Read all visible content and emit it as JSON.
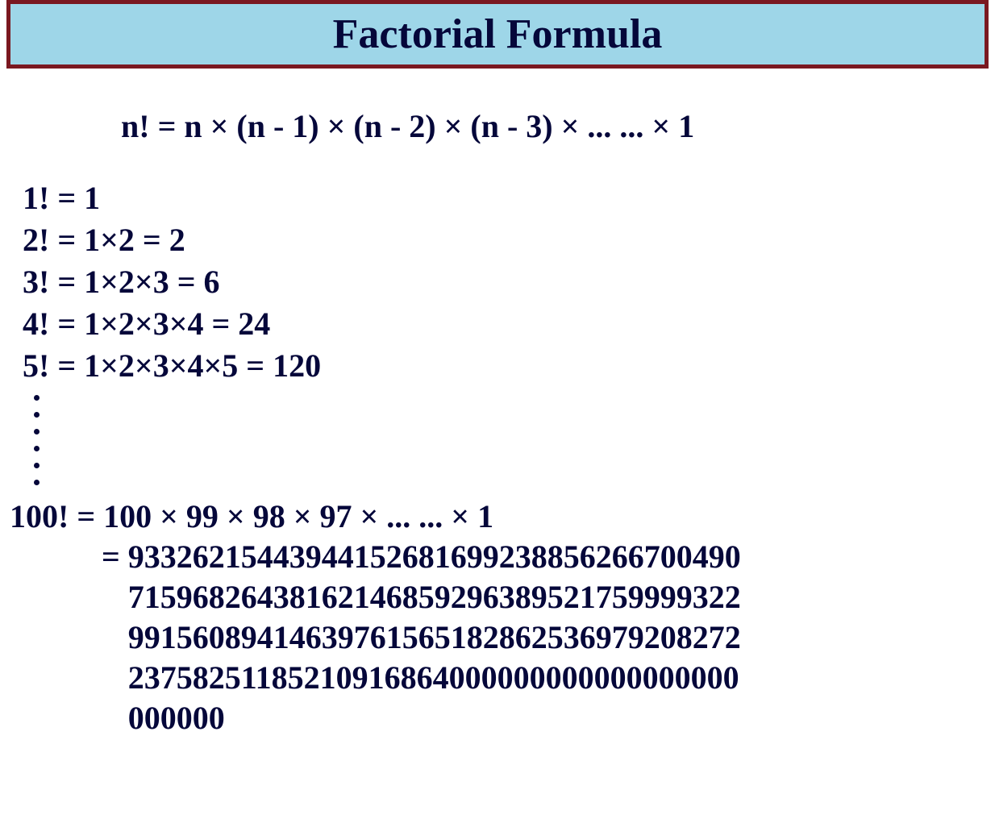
{
  "title": "Factorial Formula",
  "formula": "n! = n × (n - 1) × (n - 2) × (n - 3) × ... ... × 1",
  "examples": [
    "1! = 1",
    "2! = 1×2 = 2",
    "3! = 1×2×3 = 6",
    "4! = 1×2×3×4 = 24",
    "5! = 1×2×3×4×5 = 120"
  ],
  "dotCount": 6,
  "hundred": {
    "expansion": "100! = 100 × 99 × 98 × 97 × ... ... × 1",
    "eqSign": "= ",
    "valueLines": [
      "93326215443944152681699238856266700490",
      "71596826438162146859296389521759999322",
      "99156089414639761565182862536979208272",
      "23758251185210916864000000000000000000",
      "000000"
    ]
  },
  "colors": {
    "titleBg": "#9ed6e8",
    "titleBorder": "#7a1820",
    "text": "#05073a",
    "pageBg": "#ffffff"
  },
  "typography": {
    "titleFontSize": 52,
    "bodyFontSize": 40,
    "fontFamily": "Times New Roman",
    "fontWeight": "bold"
  }
}
